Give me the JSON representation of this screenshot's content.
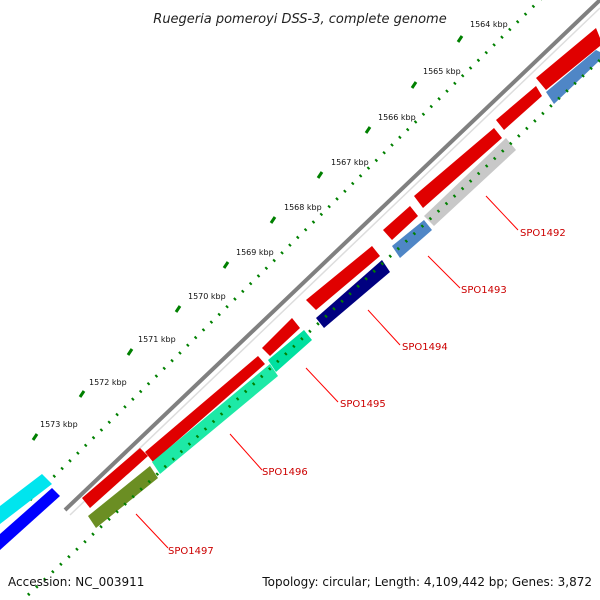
{
  "title": "Ruegeria pomeroyi DSS-3, complete genome",
  "accession": "Accession: NC_003911",
  "topology": "Topology: circular; Length: 4,109,442 bp; Genes: 3,872",
  "scale_labels": [
    "1564 kbp",
    "1565 kbp",
    "1566 kbp",
    "1567 kbp",
    "1568 kbp",
    "1569 kbp",
    "1570 kbp",
    "1571 kbp",
    "1572 kbp",
    "1573 kbp"
  ],
  "genes": [
    {
      "label": "SPO1492",
      "color": "#c8c8c8"
    },
    {
      "label": "SPO1493",
      "color": "#4f86c6"
    },
    {
      "label": "SPO1494",
      "color": "#000080"
    },
    {
      "label": "SPO1495",
      "color": "#00e0a0"
    },
    {
      "label": "SPO1496",
      "color": "#1de9a6"
    },
    {
      "label": "SPO1497",
      "color": "#6b8e23"
    }
  ],
  "colors": {
    "forward_strand": "#ff0000",
    "backbone": "#808080",
    "ticks": "#008000",
    "label_line": "#ff0000",
    "left_cyan": "#00e5ee",
    "left_blue": "#0000ff"
  }
}
